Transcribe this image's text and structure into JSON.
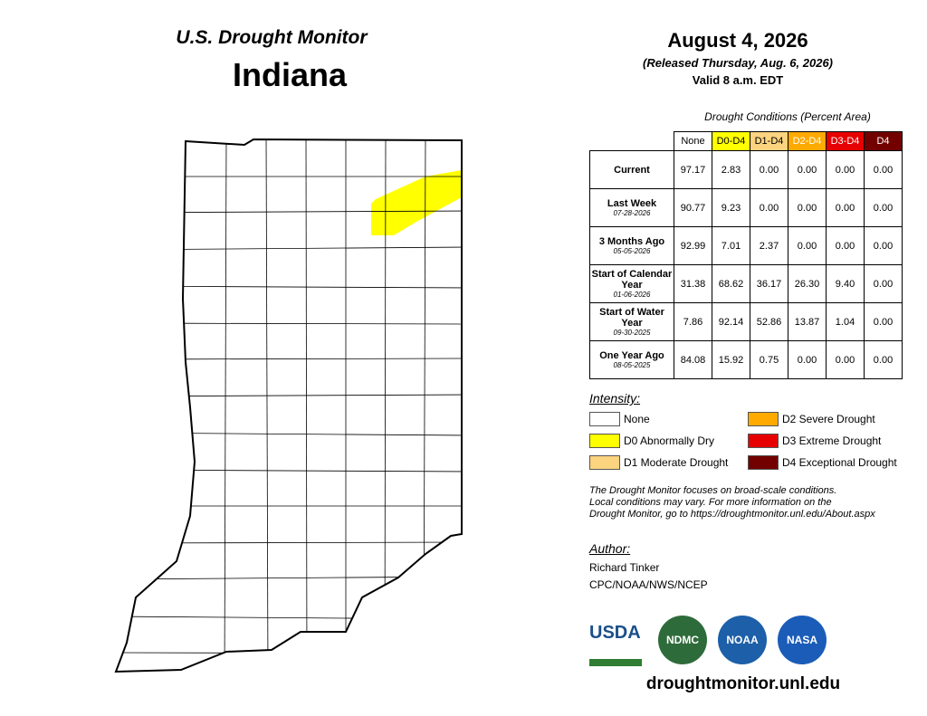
{
  "header": {
    "series_title": "U.S. Drought Monitor",
    "state": "Indiana",
    "date": "August 4, 2026",
    "released": "(Released Thursday, Aug. 6, 2026)",
    "valid": "Valid 8 a.m. EDT"
  },
  "table": {
    "caption": "Drought Conditions (Percent Area)",
    "columns": [
      {
        "label": "None",
        "color": "#ffffff",
        "text": "#000000"
      },
      {
        "label": "D0-D4",
        "color": "#ffff00",
        "text": "#000000"
      },
      {
        "label": "D1-D4",
        "color": "#fcd37f",
        "text": "#000000"
      },
      {
        "label": "D2-D4",
        "color": "#ffaa00",
        "text": "#ffffff"
      },
      {
        "label": "D3-D4",
        "color": "#e60000",
        "text": "#ffffff"
      },
      {
        "label": "D4",
        "color": "#730000",
        "text": "#ffffff"
      }
    ],
    "rows": [
      {
        "label": "Current",
        "date": null,
        "values": [
          "97.17",
          "2.83",
          "0.00",
          "0.00",
          "0.00",
          "0.00"
        ]
      },
      {
        "label": "Last Week",
        "date": "07-28-2026",
        "values": [
          "90.77",
          "9.23",
          "0.00",
          "0.00",
          "0.00",
          "0.00"
        ]
      },
      {
        "label": "3 Months Ago",
        "date": "05-05-2026",
        "values": [
          "92.99",
          "7.01",
          "2.37",
          "0.00",
          "0.00",
          "0.00"
        ]
      },
      {
        "label": "Start of Calendar Year",
        "date": "01-06-2026",
        "values": [
          "31.38",
          "68.62",
          "36.17",
          "26.30",
          "9.40",
          "0.00"
        ]
      },
      {
        "label": "Start of Water Year",
        "date": "09-30-2025",
        "values": [
          "7.86",
          "92.14",
          "52.86",
          "13.87",
          "1.04",
          "0.00"
        ]
      },
      {
        "label": "One Year Ago",
        "date": "08-05-2025",
        "values": [
          "84.08",
          "15.92",
          "0.75",
          "0.00",
          "0.00",
          "0.00"
        ]
      }
    ]
  },
  "legend": {
    "title": "Intensity:",
    "items": [
      {
        "label": "None",
        "color": "#ffffff"
      },
      {
        "label": "D0 Abnormally Dry",
        "color": "#ffff00"
      },
      {
        "label": "D1 Moderate Drought",
        "color": "#fcd37f"
      },
      {
        "label": "D2 Severe Drought",
        "color": "#ffaa00"
      },
      {
        "label": "D3 Extreme Drought",
        "color": "#e60000"
      },
      {
        "label": "D4 Exceptional Drought",
        "color": "#730000"
      }
    ]
  },
  "note": {
    "lines": [
      "The Drought Monitor focuses on broad-scale conditions.",
      "Local conditions may vary. For more information on the",
      "Drought Monitor, go to https://droughtmonitor.unl.edu/About.aspx"
    ]
  },
  "author": {
    "title": "Author:",
    "lines": [
      "Richard Tinker",
      "CPC/NOAA/NWS/NCEP"
    ]
  },
  "logos": [
    "USDA",
    "NDMC",
    "NOAA",
    "NASA"
  ],
  "url": "droughtmonitor.unl.edu"
}
